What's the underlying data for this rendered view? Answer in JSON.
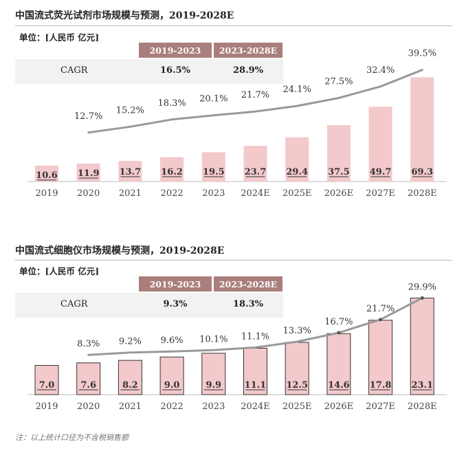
{
  "note": "注：以上统计口径为不含税销售额",
  "colors": {
    "header": "#a97e7c",
    "bar_fill": "#f3c9cc",
    "line": "#999999",
    "cagr_bg": "#f2f2f2"
  },
  "chart_data": [
    {
      "type": "bar",
      "title": "中国流式荧光试剂市场规模与预测，2019-2028E",
      "unit_label": "单位：[人民币 亿元]",
      "cagr_table": {
        "label": "CAGR",
        "periods": [
          "2019-2023",
          "2023-2028E"
        ],
        "values": [
          "16.5%",
          "28.9%"
        ]
      },
      "categories": [
        "2019",
        "2020",
        "2021",
        "2022",
        "2023",
        "2024E",
        "2025E",
        "2026E",
        "2027E",
        "2028E"
      ],
      "values": [
        10.6,
        11.9,
        13.7,
        16.2,
        19.5,
        23.7,
        29.4,
        37.5,
        49.7,
        69.3
      ],
      "growth_line": {
        "categories": [
          "2020",
          "2021",
          "2022",
          "2023",
          "2024E",
          "2025E",
          "2026E",
          "2027E",
          "2028E"
        ],
        "labels": [
          "12.7%",
          "15.2%",
          "18.3%",
          "20.1%",
          "21.7%",
          "24.1%",
          "27.5%",
          "32.4%",
          "39.5%"
        ],
        "values": [
          12.7,
          15.2,
          18.3,
          20.1,
          21.7,
          24.1,
          27.5,
          32.4,
          39.5
        ]
      },
      "ylim": [
        0,
        75
      ],
      "line_ylim": [
        0,
        40
      ],
      "bar_border": false,
      "line_markers": false
    },
    {
      "type": "bar",
      "title": "中国流式细胞仪市场规模与预测，2019-2028E",
      "unit_label": "单位：[人民币 亿元]",
      "cagr_table": {
        "label": "CAGR",
        "periods": [
          "2019-2023",
          "2023-2028E"
        ],
        "values": [
          "9.3%",
          "18.3%"
        ]
      },
      "categories": [
        "2019",
        "2020",
        "2021",
        "2022",
        "2023",
        "2024E",
        "2025E",
        "2026E",
        "2027E",
        "2028E"
      ],
      "values": [
        7.0,
        7.6,
        8.2,
        9.0,
        9.9,
        11.1,
        12.5,
        14.6,
        17.8,
        23.1
      ],
      "growth_line": {
        "categories": [
          "2020",
          "2021",
          "2022",
          "2023",
          "2024E",
          "2025E",
          "2026E",
          "2027E",
          "2028E"
        ],
        "labels": [
          "8.3%",
          "9.2%",
          "9.6%",
          "10.1%",
          "11.1%",
          "13.3%",
          "16.7%",
          "21.7%",
          "29.9%"
        ],
        "values": [
          8.3,
          9.2,
          9.6,
          10.1,
          11.1,
          13.3,
          16.7,
          21.7,
          29.9
        ]
      },
      "ylim": [
        0,
        25
      ],
      "line_ylim": [
        0,
        30
      ],
      "bar_border": true,
      "line_markers": true
    }
  ]
}
